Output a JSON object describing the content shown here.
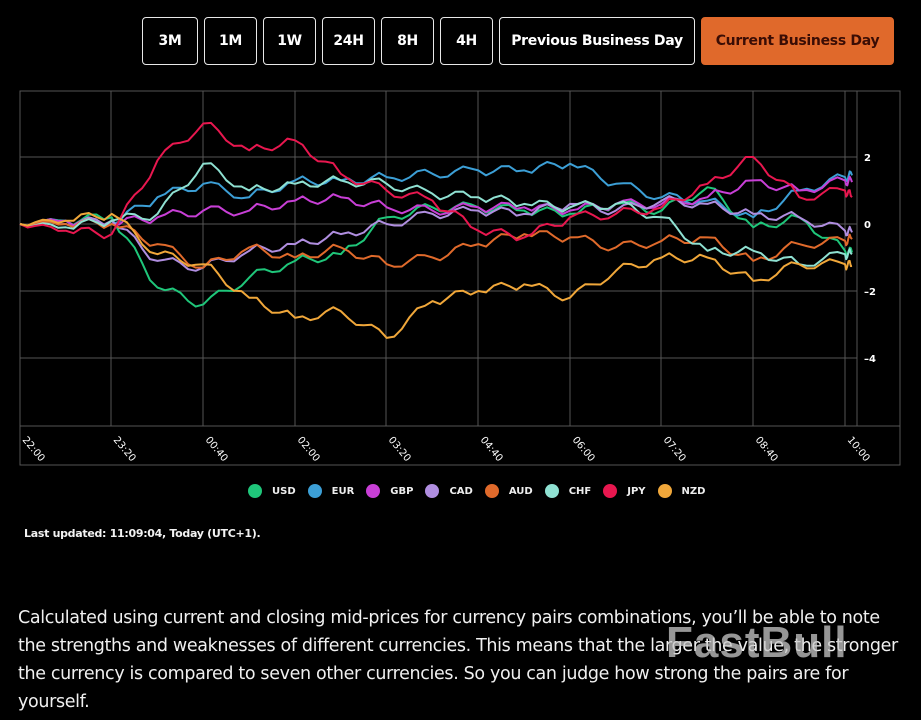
{
  "range_buttons": [
    {
      "label": "3M",
      "width": 56,
      "active": false
    },
    {
      "label": "1M",
      "width": 53,
      "active": false
    },
    {
      "label": "1W",
      "width": 53,
      "active": false
    },
    {
      "label": "24H",
      "width": 53,
      "active": false
    },
    {
      "label": "8H",
      "width": 53,
      "active": false
    },
    {
      "label": "4H",
      "width": 53,
      "active": false
    },
    {
      "label": "Previous Business Day",
      "width": 196,
      "active": false
    },
    {
      "label": "Current Business Day",
      "width": 193,
      "active": true
    }
  ],
  "colors": {
    "accent": "#e0692b",
    "grid": "#555555",
    "background": "#000000"
  },
  "chart_data": {
    "type": "line",
    "title": "",
    "xlabel": "",
    "ylabel": "",
    "x": [
      "22:00",
      "22:40",
      "23:20",
      "00:00",
      "00:40",
      "01:20",
      "02:00",
      "02:40",
      "03:20",
      "04:00",
      "04:40",
      "05:20",
      "06:00",
      "06:40",
      "07:20",
      "08:00",
      "08:40",
      "09:20",
      "10:00",
      "10:10"
    ],
    "xticks": [
      "22:00",
      "23:20",
      "00:40",
      "02:00",
      "03:20",
      "04:40",
      "06:00",
      "07:20",
      "08:40",
      "10:00"
    ],
    "yticks": [
      2,
      0,
      -2,
      -4
    ],
    "ylim": [
      -6.0,
      4.0
    ],
    "grid": true,
    "legend_position": "bottom",
    "series": [
      {
        "name": "USD",
        "color": "#1fc67a",
        "values": [
          0.0,
          0.1,
          0.2,
          -1.9,
          -2.4,
          -1.6,
          -1.1,
          -0.9,
          0.2,
          0.5,
          0.5,
          0.4,
          0.3,
          0.6,
          0.4,
          1.1,
          -0.1,
          0.2,
          -0.8,
          -0.85
        ]
      },
      {
        "name": "EUR",
        "color": "#3c9fd6",
        "values": [
          0.0,
          0.1,
          0.0,
          0.8,
          1.2,
          0.8,
          1.3,
          1.3,
          1.4,
          1.5,
          1.6,
          1.6,
          1.8,
          1.2,
          0.8,
          0.7,
          0.2,
          1.0,
          1.4,
          1.45
        ]
      },
      {
        "name": "GBP",
        "color": "#c83fd6",
        "values": [
          0.0,
          0.1,
          0.0,
          0.2,
          0.4,
          0.4,
          0.7,
          0.8,
          0.5,
          0.4,
          0.5,
          0.5,
          0.4,
          0.6,
          0.6,
          0.8,
          1.3,
          1.0,
          1.3,
          1.25
        ]
      },
      {
        "name": "CAD",
        "color": "#b08ee0",
        "values": [
          0.0,
          0.0,
          0.1,
          -1.1,
          -1.3,
          -0.8,
          -0.6,
          -0.3,
          0.0,
          0.3,
          0.4,
          0.3,
          0.6,
          0.4,
          0.7,
          0.6,
          0.3,
          0.2,
          -0.2,
          -0.25
        ]
      },
      {
        "name": "AUD",
        "color": "#e06a2b",
        "values": [
          0.0,
          0.0,
          0.0,
          -0.6,
          -1.3,
          -0.7,
          -1.0,
          -0.7,
          -1.2,
          -1.0,
          -0.6,
          -0.3,
          -0.4,
          -0.7,
          -0.5,
          -0.4,
          -1.1,
          -0.6,
          -0.5,
          -0.45
        ]
      },
      {
        "name": "CHF",
        "color": "#8fe1d2",
        "values": [
          0.0,
          -0.1,
          0.1,
          0.3,
          1.8,
          1.0,
          1.2,
          1.3,
          1.2,
          0.9,
          0.8,
          0.6,
          0.5,
          0.6,
          0.2,
          -0.8,
          -0.8,
          -1.2,
          -0.9,
          -0.9
        ]
      },
      {
        "name": "JPY",
        "color": "#e8174f",
        "values": [
          0.0,
          -0.2,
          -0.3,
          1.9,
          3.0,
          2.2,
          2.5,
          1.5,
          1.0,
          0.7,
          -0.2,
          -0.4,
          0.2,
          0.3,
          0.5,
          1.2,
          2.0,
          0.8,
          1.0,
          0.8
        ]
      },
      {
        "name": "NZD",
        "color": "#f0a73a",
        "values": [
          0.0,
          0.1,
          0.3,
          -0.9,
          -1.2,
          -2.2,
          -2.8,
          -2.6,
          -3.4,
          -2.3,
          -2.0,
          -1.8,
          -2.2,
          -1.4,
          -1.0,
          -1.0,
          -1.7,
          -1.2,
          -1.2,
          -1.25
        ]
      }
    ]
  },
  "legend": [
    {
      "label": "USD",
      "color": "#1fc67a"
    },
    {
      "label": "EUR",
      "color": "#3c9fd6"
    },
    {
      "label": "GBP",
      "color": "#c83fd6"
    },
    {
      "label": "CAD",
      "color": "#b08ee0"
    },
    {
      "label": "AUD",
      "color": "#e06a2b"
    },
    {
      "label": "CHF",
      "color": "#8fe1d2"
    },
    {
      "label": "JPY",
      "color": "#e8174f"
    },
    {
      "label": "NZD",
      "color": "#f0a73a"
    }
  ],
  "last_updated": "Last updated: 11:09:04, Today (UTC+1).",
  "description": "Calculated using current and closing mid-prices for currency pairs combinations, you’ll be able to note the strengths and weaknesses of different currencies. This means that the larger the value, the stronger the currency is compared to seven other currencies. So you can judge how strong the pairs are for yourself.",
  "watermark": "FastBull"
}
